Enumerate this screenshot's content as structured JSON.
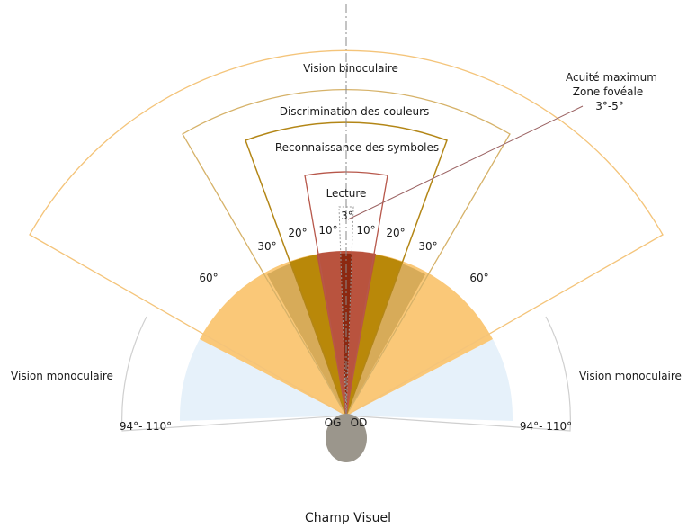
{
  "labels": {
    "vision_binoculaire": "Vision binoculaire",
    "discrimination_couleurs": "Discrimination des couleurs",
    "reconnaissance_symboles": "Reconnaissance des symboles",
    "lecture": "Lecture",
    "acuite_line1": "Acuité maximum",
    "acuite_line2": "Zone fovéale",
    "acuite_line3": "3°-5°",
    "vision_monoculaire_left": "Vision monoculaire",
    "vision_monoculaire_right": "Vision monoculaire",
    "deg_3": "3°",
    "deg_10_left": "10°",
    "deg_10_right": "10°",
    "deg_20_left": "20°",
    "deg_20_right": "20°",
    "deg_30_left": "30°",
    "deg_30_right": "30°",
    "deg_60_left": "60°",
    "deg_60_right": "60°",
    "deg_94_110_left": "94°- 110°",
    "deg_94_110_right": "94°- 110°",
    "og": "OG",
    "od": "OD",
    "title": "Champ Visuel"
  },
  "colors": {
    "monocular_fill": "#e6f1fa",
    "binocular_fill": "#fac878",
    "zone30_fill": "#d7ab59",
    "zone20_fill": "#b98809",
    "zone10_fill": "#b9533e",
    "zone3_fill": "#8c2810",
    "binocular_outline": "#f4c47a",
    "couleurs_outline": "#d6b269",
    "symboles_outline": "#b38616",
    "lecture_outline": "#b7574a",
    "monocular_outline": "#cfcfcf",
    "eye_fill": "#9b968c",
    "axis": "#8a8a8a",
    "leader": "#9b6262"
  }
}
